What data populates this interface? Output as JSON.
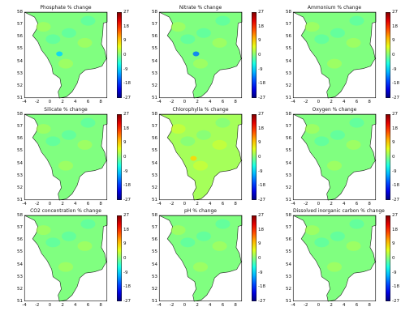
{
  "chart_data": [
    {
      "type": "heatmap",
      "title": "Phosphate % change",
      "x_ticks": [
        "-4",
        "-2",
        "0",
        "2",
        "4",
        "6",
        "8"
      ],
      "y_ticks": [
        "58",
        "57",
        "56",
        "55",
        "54",
        "53",
        "52",
        "51"
      ],
      "colorbar_ticks": [
        "27",
        "18",
        "9",
        "0",
        "-9",
        "-18",
        "-27"
      ],
      "xlim": [
        -4,
        9
      ],
      "ylim": [
        51,
        58
      ],
      "clim": [
        -27,
        27
      ],
      "colormap": "jet",
      "background_value": 0,
      "hotspots": [
        {
          "lon": 1.5,
          "lat": 54.6,
          "value": -9
        }
      ]
    },
    {
      "type": "heatmap",
      "title": "Nitrate % change",
      "x_ticks": [
        "-4",
        "-2",
        "0",
        "2",
        "4",
        "6",
        "8"
      ],
      "y_ticks": [
        "58",
        "57",
        "56",
        "55",
        "54",
        "53",
        "52",
        "51"
      ],
      "colorbar_ticks": [
        "27",
        "18",
        "9",
        "0",
        "-9",
        "-18",
        "-27"
      ],
      "xlim": [
        -4,
        9
      ],
      "ylim": [
        51,
        58
      ],
      "clim": [
        -27,
        27
      ],
      "colormap": "jet",
      "background_value": 0,
      "hotspots": [
        {
          "lon": 1.8,
          "lat": 54.6,
          "value": -14
        }
      ]
    },
    {
      "type": "heatmap",
      "title": "Ammonium % change",
      "x_ticks": [
        "-4",
        "-2",
        "0",
        "2",
        "4",
        "6",
        "8"
      ],
      "y_ticks": [
        "58",
        "57",
        "56",
        "55",
        "54",
        "53",
        "52",
        "51"
      ],
      "colorbar_ticks": [
        "27",
        "18",
        "9",
        "0",
        "-9",
        "-18",
        "-27"
      ],
      "xlim": [
        -4,
        9
      ],
      "ylim": [
        51,
        58
      ],
      "clim": [
        -27,
        27
      ],
      "colormap": "jet",
      "background_value": 0,
      "hotspots": []
    },
    {
      "type": "heatmap",
      "title": "Silicate % change",
      "x_ticks": [
        "-4",
        "-2",
        "0",
        "2",
        "4",
        "6",
        "8"
      ],
      "y_ticks": [
        "58",
        "57",
        "56",
        "55",
        "54",
        "53",
        "52",
        "51"
      ],
      "colorbar_ticks": [
        "27",
        "18",
        "9",
        "0",
        "-9",
        "-18",
        "-27"
      ],
      "xlim": [
        -4,
        9
      ],
      "ylim": [
        51,
        58
      ],
      "clim": [
        -27,
        27
      ],
      "colormap": "jet",
      "background_value": 0,
      "hotspots": []
    },
    {
      "type": "heatmap",
      "title": "Chlorophylla % change",
      "x_ticks": [
        "-4",
        "-2",
        "0",
        "2",
        "4",
        "6",
        "8"
      ],
      "y_ticks": [
        "58",
        "57",
        "56",
        "55",
        "54",
        "53",
        "52",
        "51"
      ],
      "colorbar_ticks": [
        "27",
        "18",
        "9",
        "0",
        "-9",
        "-18",
        "-27"
      ],
      "xlim": [
        -4,
        9
      ],
      "ylim": [
        51,
        58
      ],
      "clim": [
        -27,
        27
      ],
      "colormap": "jet",
      "background_value": 2,
      "hotspots": [
        {
          "lon": 1.4,
          "lat": 54.4,
          "value": 9
        }
      ]
    },
    {
      "type": "heatmap",
      "title": "Oxygen % change",
      "x_ticks": [
        "-4",
        "-2",
        "0",
        "2",
        "4",
        "6",
        "8"
      ],
      "y_ticks": [
        "58",
        "57",
        "56",
        "55",
        "54",
        "53",
        "52",
        "51"
      ],
      "colorbar_ticks": [
        "27",
        "18",
        "9",
        "0",
        "-9",
        "-18",
        "-27"
      ],
      "xlim": [
        -4,
        9
      ],
      "ylim": [
        51,
        58
      ],
      "clim": [
        -27,
        27
      ],
      "colormap": "jet",
      "background_value": 0,
      "hotspots": []
    },
    {
      "type": "heatmap",
      "title": "CO2 concentration % change",
      "x_ticks": [
        "-4",
        "-2",
        "0",
        "2",
        "4",
        "6",
        "8"
      ],
      "y_ticks": [
        "58",
        "57",
        "56",
        "55",
        "54",
        "53",
        "52",
        "51"
      ],
      "colorbar_ticks": [
        "27",
        "18",
        "9",
        "0",
        "-9",
        "-18",
        "-27"
      ],
      "xlim": [
        -4,
        9
      ],
      "ylim": [
        51,
        58
      ],
      "clim": [
        -27,
        27
      ],
      "colormap": "jet",
      "background_value": 0,
      "hotspots": []
    },
    {
      "type": "heatmap",
      "title": "pH % change",
      "x_ticks": [
        "-4",
        "-2",
        "0",
        "2",
        "4",
        "6",
        "8"
      ],
      "y_ticks": [
        "58",
        "57",
        "56",
        "55",
        "54",
        "53",
        "52",
        "51"
      ],
      "colorbar_ticks": [
        "27",
        "18",
        "9",
        "0",
        "-9",
        "-18",
        "-27"
      ],
      "xlim": [
        -4,
        9
      ],
      "ylim": [
        51,
        58
      ],
      "clim": [
        -27,
        27
      ],
      "colormap": "jet",
      "background_value": 0,
      "hotspots": []
    },
    {
      "type": "heatmap",
      "title": "Dissolved inorganic carbon % change",
      "x_ticks": [
        "-4",
        "-2",
        "0",
        "2",
        "4",
        "6",
        "8"
      ],
      "y_ticks": [
        "58",
        "57",
        "56",
        "55",
        "54",
        "53",
        "52",
        "51"
      ],
      "colorbar_ticks": [
        "27",
        "18",
        "9",
        "0",
        "-9",
        "-18",
        "-27"
      ],
      "xlim": [
        -4,
        9
      ],
      "ylim": [
        51,
        58
      ],
      "clim": [
        -27,
        27
      ],
      "colormap": "jet",
      "background_value": 0,
      "hotspots": []
    }
  ]
}
